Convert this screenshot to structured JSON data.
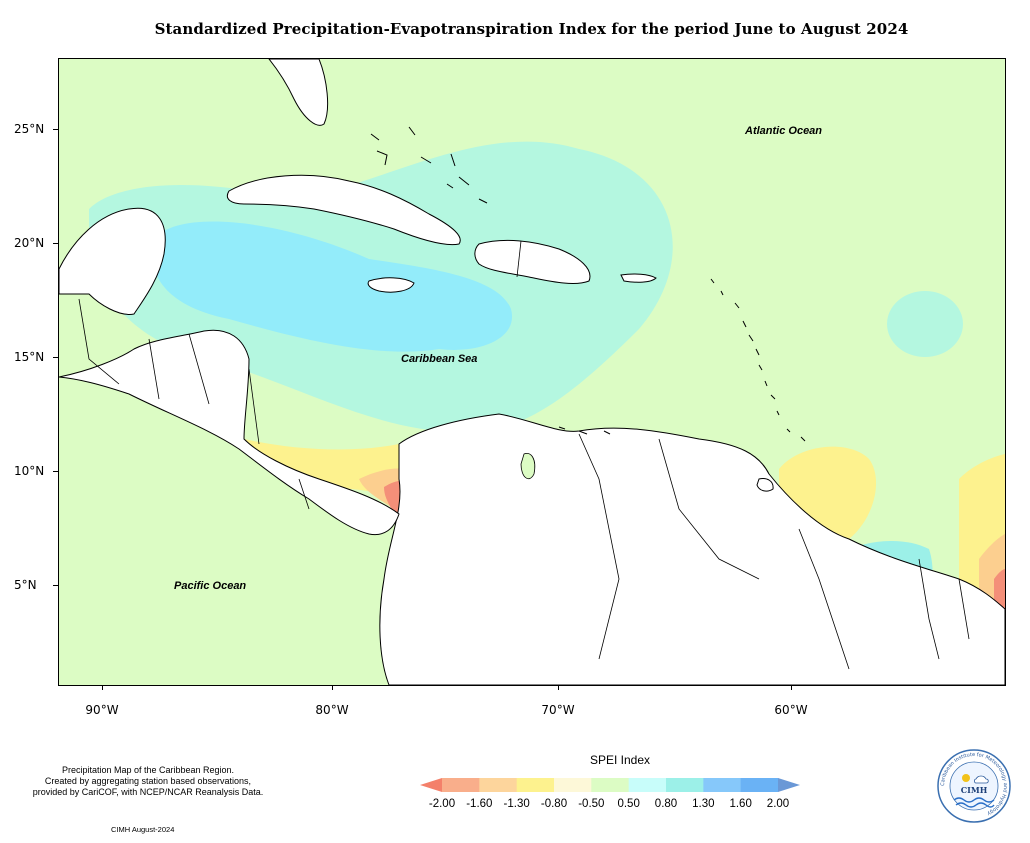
{
  "title": "Standardized Precipitation-Evapotranspiration Index for the period June to August 2024",
  "map": {
    "ocean_labels": [
      "Atlantic Ocean",
      "Caribbean Sea",
      "Pacific Ocean"
    ],
    "latitude_labels": [
      "25°N",
      "20°N",
      "15°N",
      "10°N",
      "5°N"
    ],
    "longitude_labels": [
      "90°W",
      "80°W",
      "70°W",
      "60°W"
    ],
    "colors": {
      "near_normal": "#dcfcc4",
      "moderately_wet": "#b4f7e0",
      "very_wet": "#93ecfa",
      "severely_wet": "#6fa9f2",
      "extremely_wet": "#8f9ef0",
      "moderately_dry": "#fdf28e",
      "severely_dry": "#fccf8f",
      "extremely_dry": "#f48f79",
      "land": "#ffffff"
    }
  },
  "legend": {
    "title": "SPEI Index",
    "ticks": [
      "-2.00",
      "-1.60",
      "-1.30",
      "-0.80",
      "-0.50",
      "0.50",
      "0.80",
      "1.30",
      "1.60",
      "2.00"
    ],
    "colors": [
      "#f4806a",
      "#f9ae8b",
      "#fdd59c",
      "#fdf28e",
      "#fdf8d8",
      "#dcfcc4",
      "#c8fdfa",
      "#9cf0e8",
      "#86c8fa",
      "#6ab2f5",
      "#6a98d6"
    ]
  },
  "caption": {
    "lines": [
      "Precipitation Map of the Caribbean Region.",
      "Created by aggregating station based observations,",
      "provided by CariCOF, with NCEP/NCAR Reanalysis Data."
    ],
    "credit": "CIMH August-2024"
  },
  "logo": {
    "acronym": "CIMH",
    "ring_text": "Caribbean Institute for Meteorology and Hydrology"
  }
}
